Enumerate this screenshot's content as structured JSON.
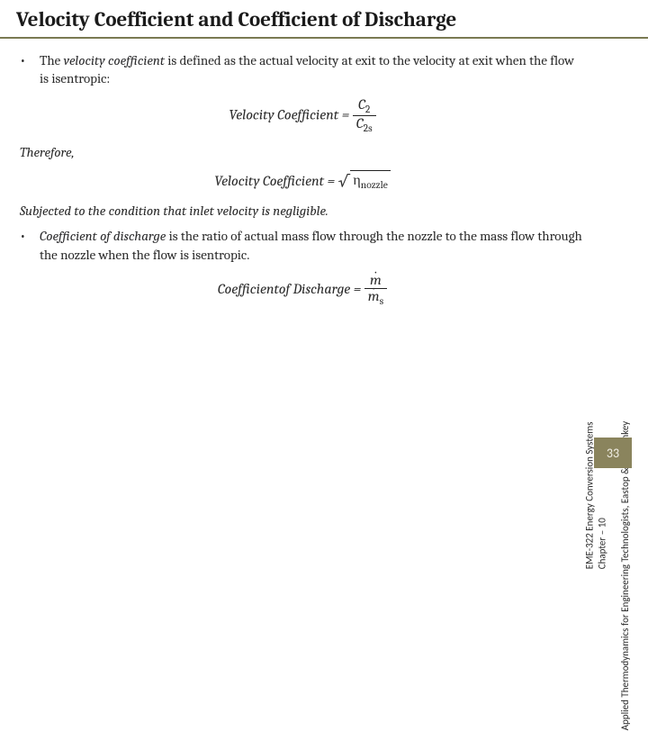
{
  "title": "Velocity Coefficient and Coefficient of Discharge",
  "bullet1": {
    "term": "velocity coefficient",
    "pre": "The ",
    "post": " is defined as the actual velocity at exit to the velocity at exit when the flow is isentropic:"
  },
  "eq1": {
    "lhs": "Velocity Coefficient",
    "num": "C",
    "num_sub": "2",
    "den": "C",
    "den_sub": "2s"
  },
  "therefore": "Therefore,",
  "eq2": {
    "lhs": "Velocity Coefficient",
    "under_root": "η",
    "under_root_sub": "nozzle"
  },
  "condition": "Subjected to the condition that inlet velocity is negligible.",
  "bullet2": {
    "term": "Coefficient of discharge",
    "post": " is the ratio of actual mass flow through the nozzle to the mass flow through the nozzle when the flow is isentropic."
  },
  "eq3": {
    "lhs": "Coefficientof Discharge",
    "num": "m",
    "den": "m",
    "den_sub": "s"
  },
  "side": {
    "line1": "EME-322 Energy Conversion Systems",
    "line2": "Chapter – 10",
    "line3": "Applied Thermodynamics for Engineering Technologists, Eastop & Mc.Conkey"
  },
  "page_number": "33"
}
